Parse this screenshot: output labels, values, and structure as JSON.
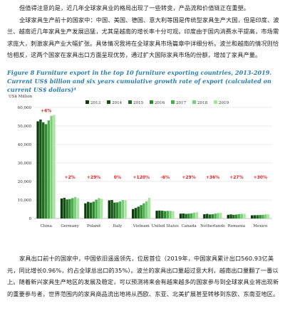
{
  "top_paragraph": {
    "line1": "但值得注意的是，近几年全球家具业的格局出现了一些转变，产品流和价值链正在重塑。",
    "para2": "全球家具生产前十的国家中：中国、美国、德国、意大利等国是传统型家具生产大国，但是印度、波兰、越南近几年家具生产发展迅猛，尤其是越南的增长率十分可观。印度由于国内消费水平提高，市场需求庞大，刺激家具产业大幅扩张。具体情况我将在全球家具市场篇章中详细分析。波兰和越南的情况则恰恰相反，这两个国家在家具出口方面呈现优势，通过扩大国际家具市场的份额，增加了家具产量。"
  },
  "figure_caption": "Figure 8        Furniture export in the top 10 furniture exporting countries, 2013-2019.  Current US$ billion and six years cumulative growth rate of export (calculated on current US$ dollars)⁴",
  "chart_data": {
    "type": "bar",
    "ylabel": "US$ Million",
    "ylim": [
      0,
      60000
    ],
    "yticks": [
      "0",
      "10,000",
      "20,000",
      "30,000",
      "40,000",
      "50,000",
      "60,000"
    ],
    "grid": true,
    "legend_position": "top",
    "categories": [
      "China",
      "Germany",
      "Poland",
      "Italy",
      "Vietnam",
      "United States",
      "Canada",
      "Netherlands",
      "Romania",
      "Mexico"
    ],
    "growth_labels": [
      "+6%",
      "+2%",
      "+29%",
      "0%",
      "+120%",
      "-6%",
      "+29%",
      "+36%",
      "+27%",
      "+30%"
    ],
    "series": [
      {
        "name": "2013",
        "color": "#0a3d0a",
        "values": [
          52500,
          10800,
          8200,
          9800,
          5100,
          4200,
          2600,
          2300,
          2000,
          1700
        ]
      },
      {
        "name": "2014",
        "color": "#145214",
        "values": [
          53500,
          11200,
          9000,
          10000,
          5700,
          4300,
          2700,
          2500,
          2200,
          1800
        ]
      },
      {
        "name": "2015",
        "color": "#1f6b1f",
        "values": [
          52000,
          10300,
          8600,
          8600,
          6400,
          4200,
          2500,
          2200,
          2000,
          1800
        ]
      },
      {
        "name": "2016",
        "color": "#2e8b2e",
        "values": [
          51000,
          10500,
          9100,
          8700,
          7200,
          4000,
          2600,
          2300,
          2100,
          1900
        ]
      },
      {
        "name": "2017",
        "color": "#4caf4c",
        "values": [
          53000,
          11000,
          10200,
          9200,
          8200,
          4100,
          2800,
          2600,
          2300,
          2000
        ]
      },
      {
        "name": "2018",
        "color": "#7dcf7d",
        "values": [
          55500,
          11600,
          11000,
          10000,
          9300,
          4100,
          3100,
          2900,
          2500,
          2200
        ]
      },
      {
        "name": "2019",
        "color": "#a8e6a0",
        "values": [
          56000,
          11000,
          10600,
          9800,
          11200,
          3950,
          3350,
          3100,
          2550,
          2200
        ]
      }
    ]
  },
  "bottom_paragraph": "家具出口前十的国家中，中国依旧遥遥领先，位居首位（2019年，中国家具累计出口560.93亿美元，同比增长0.96%，约占全球总出口的35%）。波兰的家具出口量超过意大利，越南出口量翻了一番以上。随着新兴家具生产地区的发展及稳定，可以预测将来会有越来越多的国家参与到全球家具业将出现新的重要参与者，世界范围内的家具商品流出地将从西欧、东亚、北美扩展甚至转移到东欧、东南亚地区。"
}
